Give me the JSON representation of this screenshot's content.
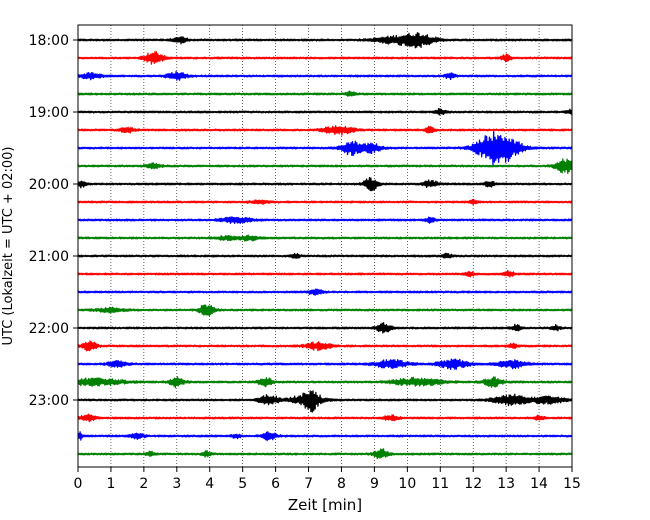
{
  "chart_data": {
    "type": "line",
    "xlabel": "Zeit  [min]",
    "ylabel": "UTC (Lokalzeit = UTC + 02:00)",
    "xlim": [
      0,
      15
    ],
    "x_ticks": [
      0,
      1,
      2,
      3,
      4,
      5,
      6,
      7,
      8,
      9,
      10,
      11,
      12,
      13,
      14,
      15
    ],
    "y_tick_labels": [
      "18:00",
      "19:00",
      "20:00",
      "21:00",
      "22:00",
      "23:00"
    ],
    "vertical_grid": "dotted",
    "trace_colors": [
      "#000000",
      "#ff0000",
      "#0000ff",
      "#008000"
    ],
    "traces": [
      {
        "start": "18:00",
        "color": "#000000",
        "bursts": [
          [
            3.1,
            0.15,
            3
          ],
          [
            9.8,
            0.5,
            4
          ],
          [
            10.4,
            0.3,
            5
          ]
        ]
      },
      {
        "start": "18:15",
        "color": "#ff0000",
        "bursts": [
          [
            2.3,
            0.2,
            6
          ],
          [
            13.0,
            0.1,
            3
          ]
        ]
      },
      {
        "start": "18:30",
        "color": "#0000ff",
        "bursts": [
          [
            0.4,
            0.2,
            3
          ],
          [
            3.0,
            0.2,
            4
          ],
          [
            11.3,
            0.1,
            3
          ]
        ]
      },
      {
        "start": "18:45",
        "color": "#008000",
        "bursts": [
          [
            8.3,
            0.1,
            2.5
          ]
        ]
      },
      {
        "start": "19:00",
        "color": "#000000",
        "bursts": [
          [
            11.0,
            0.1,
            3
          ],
          [
            15.0,
            0.1,
            3
          ]
        ]
      },
      {
        "start": "19:15",
        "color": "#ff0000",
        "bursts": [
          [
            1.5,
            0.15,
            2.5
          ],
          [
            7.9,
            0.3,
            4.5
          ],
          [
            10.7,
            0.1,
            3
          ]
        ]
      },
      {
        "start": "19:30",
        "color": "#0000ff",
        "bursts": [
          [
            8.3,
            0.2,
            7
          ],
          [
            8.9,
            0.2,
            5
          ],
          [
            12.6,
            0.35,
            14
          ],
          [
            13.1,
            0.3,
            7
          ]
        ]
      },
      {
        "start": "19:45",
        "color": "#008000",
        "bursts": [
          [
            2.3,
            0.15,
            2.5
          ],
          [
            14.8,
            0.2,
            7
          ]
        ]
      },
      {
        "start": "20:00",
        "color": "#000000",
        "bursts": [
          [
            0.1,
            0.1,
            3
          ],
          [
            8.9,
            0.15,
            6
          ],
          [
            10.7,
            0.15,
            3.5
          ],
          [
            12.5,
            0.1,
            3
          ]
        ]
      },
      {
        "start": "20:15",
        "color": "#ff0000",
        "bursts": [
          [
            5.5,
            0.2,
            2
          ],
          [
            12.0,
            0.1,
            2
          ]
        ]
      },
      {
        "start": "20:30",
        "color": "#0000ff",
        "bursts": [
          [
            4.8,
            0.3,
            3
          ],
          [
            10.7,
            0.1,
            2.5
          ]
        ]
      },
      {
        "start": "20:45",
        "color": "#008000",
        "bursts": [
          [
            4.5,
            0.2,
            2
          ],
          [
            5.2,
            0.2,
            2.5
          ]
        ]
      },
      {
        "start": "21:00",
        "color": "#000000",
        "bursts": [
          [
            6.6,
            0.1,
            2
          ],
          [
            11.2,
            0.1,
            2
          ]
        ]
      },
      {
        "start": "21:15",
        "color": "#ff0000",
        "bursts": [
          [
            13.1,
            0.1,
            3
          ],
          [
            11.9,
            0.1,
            2
          ]
        ]
      },
      {
        "start": "21:30",
        "color": "#0000ff",
        "bursts": [
          [
            7.2,
            0.15,
            2.5
          ]
        ]
      },
      {
        "start": "21:45",
        "color": "#008000",
        "bursts": [
          [
            3.9,
            0.15,
            6
          ],
          [
            1.0,
            0.3,
            2
          ]
        ]
      },
      {
        "start": "22:00",
        "color": "#000000",
        "bursts": [
          [
            9.3,
            0.15,
            5
          ],
          [
            13.3,
            0.1,
            3
          ],
          [
            14.5,
            0.1,
            2.5
          ]
        ]
      },
      {
        "start": "22:15",
        "color": "#ff0000",
        "bursts": [
          [
            0.35,
            0.15,
            5
          ],
          [
            7.3,
            0.25,
            4
          ],
          [
            13.2,
            0.1,
            2
          ]
        ]
      },
      {
        "start": "22:30",
        "color": "#0000ff",
        "bursts": [
          [
            1.2,
            0.2,
            3
          ],
          [
            9.5,
            0.35,
            4
          ],
          [
            11.4,
            0.3,
            5
          ],
          [
            13.2,
            0.3,
            4
          ]
        ]
      },
      {
        "start": "22:45",
        "color": "#008000",
        "bursts": [
          [
            0.5,
            0.6,
            3.5
          ],
          [
            3.0,
            0.15,
            5
          ],
          [
            5.7,
            0.15,
            4
          ],
          [
            10.3,
            0.5,
            4
          ],
          [
            12.6,
            0.2,
            4.5
          ]
        ]
      },
      {
        "start": "23:00",
        "color": "#000000",
        "bursts": [
          [
            5.8,
            0.2,
            5
          ],
          [
            6.9,
            0.35,
            4.5
          ],
          [
            7.1,
            0.15,
            8
          ],
          [
            13.2,
            0.4,
            5
          ],
          [
            14.3,
            0.3,
            4
          ]
        ]
      },
      {
        "start": "23:15",
        "color": "#ff0000",
        "bursts": [
          [
            0.3,
            0.15,
            3.5
          ],
          [
            9.5,
            0.15,
            2.5
          ],
          [
            14.0,
            0.1,
            2.5
          ]
        ]
      },
      {
        "start": "23:30",
        "color": "#0000ff",
        "bursts": [
          [
            0.05,
            0.05,
            4.5
          ],
          [
            5.8,
            0.15,
            4
          ],
          [
            1.8,
            0.15,
            2.5
          ],
          [
            4.8,
            0.1,
            2
          ]
        ]
      },
      {
        "start": "23:45",
        "color": "#008000",
        "bursts": [
          [
            9.2,
            0.15,
            5
          ],
          [
            3.9,
            0.1,
            2.5
          ],
          [
            2.2,
            0.1,
            2
          ]
        ]
      }
    ]
  }
}
